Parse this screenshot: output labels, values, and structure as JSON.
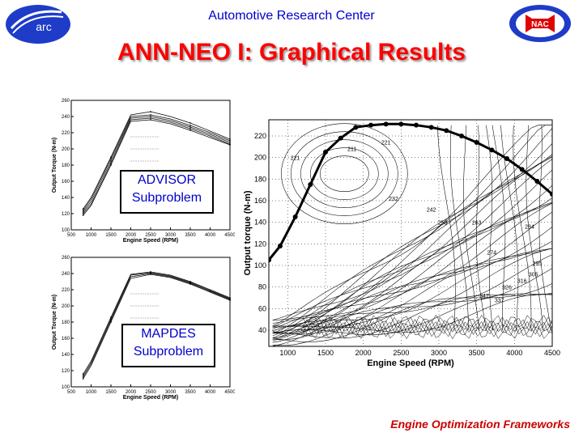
{
  "header": {
    "org": "Automotive Research Center",
    "left_logo_text": "arc",
    "right_logo_text": "NAC"
  },
  "title": "ANN-NEO I: Graphical Results",
  "footer": "Engine Optimization Frameworks",
  "colors": {
    "title": "#ff0000",
    "header": "#0000cc",
    "footer": "#cc0000",
    "logo": "#1e3cc8"
  },
  "small_plots": [
    {
      "legend_line1": "ADVISOR",
      "legend_line2": "Subproblem",
      "xlabel": "Engine Speed (RPM)",
      "ylabel": "Output Torque (N-m)",
      "xticks": [
        "500",
        "1000",
        "1500",
        "2000",
        "2500",
        "3000",
        "3500",
        "4000",
        "4500"
      ],
      "yticks": [
        "100",
        "120",
        "140",
        "160",
        "180",
        "200",
        "220",
        "240",
        "260"
      ]
    },
    {
      "legend_line1": "MAPDES",
      "legend_line2": "Subproblem",
      "xlabel": "Engine Speed (RPM)",
      "ylabel": "Output Torque (N-m)",
      "xticks": [
        "500",
        "1000",
        "1500",
        "2000",
        "2500",
        "3000",
        "3500",
        "4000",
        "4500"
      ],
      "yticks": [
        "100",
        "120",
        "140",
        "160",
        "180",
        "200",
        "220",
        "240",
        "260"
      ]
    }
  ],
  "map_plot": {
    "xlabel": "Engine Speed (RPM)",
    "ylabel": "Output torque (N-m)",
    "xticks": [
      "1000",
      "1500",
      "2000",
      "2500",
      "3000",
      "3500",
      "4000",
      "4500"
    ],
    "yticks": [
      "40",
      "60",
      "80",
      "100",
      "120",
      "140",
      "160",
      "180",
      "200",
      "220"
    ],
    "contour_labels": [
      "211",
      "221",
      "221",
      "232",
      "242",
      "253",
      "263",
      "274",
      "284",
      "295",
      "305",
      "316",
      "326",
      "337",
      "347"
    ]
  },
  "chart_data": [
    {
      "type": "line",
      "title": "",
      "xlabel": "Engine Speed (RPM)",
      "ylabel": "Output Torque (N-m)",
      "xlim": [
        500,
        4500
      ],
      "ylim": [
        100,
        260
      ],
      "x": [
        800,
        1000,
        1500,
        2000,
        2500,
        3000,
        3500,
        4000,
        4500
      ],
      "series": [
        {
          "values": [
            122,
            135,
            185,
            238,
            240,
            235,
            227,
            218,
            208
          ]
        },
        {
          "values": [
            124,
            138,
            188,
            240,
            242,
            237,
            229,
            220,
            210
          ]
        },
        {
          "values": [
            120,
            132,
            182,
            236,
            238,
            233,
            225,
            216,
            206
          ]
        },
        {
          "values": [
            126,
            140,
            190,
            242,
            246,
            240,
            232,
            222,
            212
          ]
        },
        {
          "values": [
            118,
            130,
            180,
            234,
            236,
            231,
            223,
            214,
            205
          ]
        }
      ]
    },
    {
      "type": "line",
      "title": "",
      "xlabel": "Engine Speed (RPM)",
      "ylabel": "Output Torque (N-m)",
      "xlim": [
        500,
        4500
      ],
      "ylim": [
        100,
        260
      ],
      "x": [
        800,
        1000,
        1500,
        2000,
        2500,
        3000,
        3500,
        4000,
        4500
      ],
      "series": [
        {
          "values": [
            112,
            128,
            182,
            236,
            240,
            236,
            228,
            218,
            208
          ]
        },
        {
          "values": [
            114,
            130,
            184,
            238,
            241,
            237,
            229,
            219,
            209
          ]
        },
        {
          "values": [
            110,
            126,
            180,
            234,
            239,
            235,
            227,
            217,
            207
          ]
        },
        {
          "values": [
            116,
            132,
            186,
            239,
            242,
            238,
            230,
            220,
            210
          ]
        }
      ]
    },
    {
      "type": "line",
      "title": "",
      "xlabel": "Engine Speed (RPM)",
      "ylabel": "Output torque (N-m)",
      "xlim": [
        750,
        4500
      ],
      "ylim": [
        25,
        235
      ],
      "x": [
        750,
        900,
        1100,
        1300,
        1500,
        1700,
        1900,
        2100,
        2300,
        2500,
        2700,
        2900,
        3100,
        3300,
        3500,
        3700,
        3900,
        4100,
        4300,
        4500
      ],
      "series": [
        {
          "values": [
            105,
            118,
            145,
            175,
            205,
            218,
            228,
            230,
            231,
            231,
            230,
            228,
            225,
            220,
            214,
            207,
            199,
            189,
            178,
            166
          ]
        }
      ]
    }
  ]
}
